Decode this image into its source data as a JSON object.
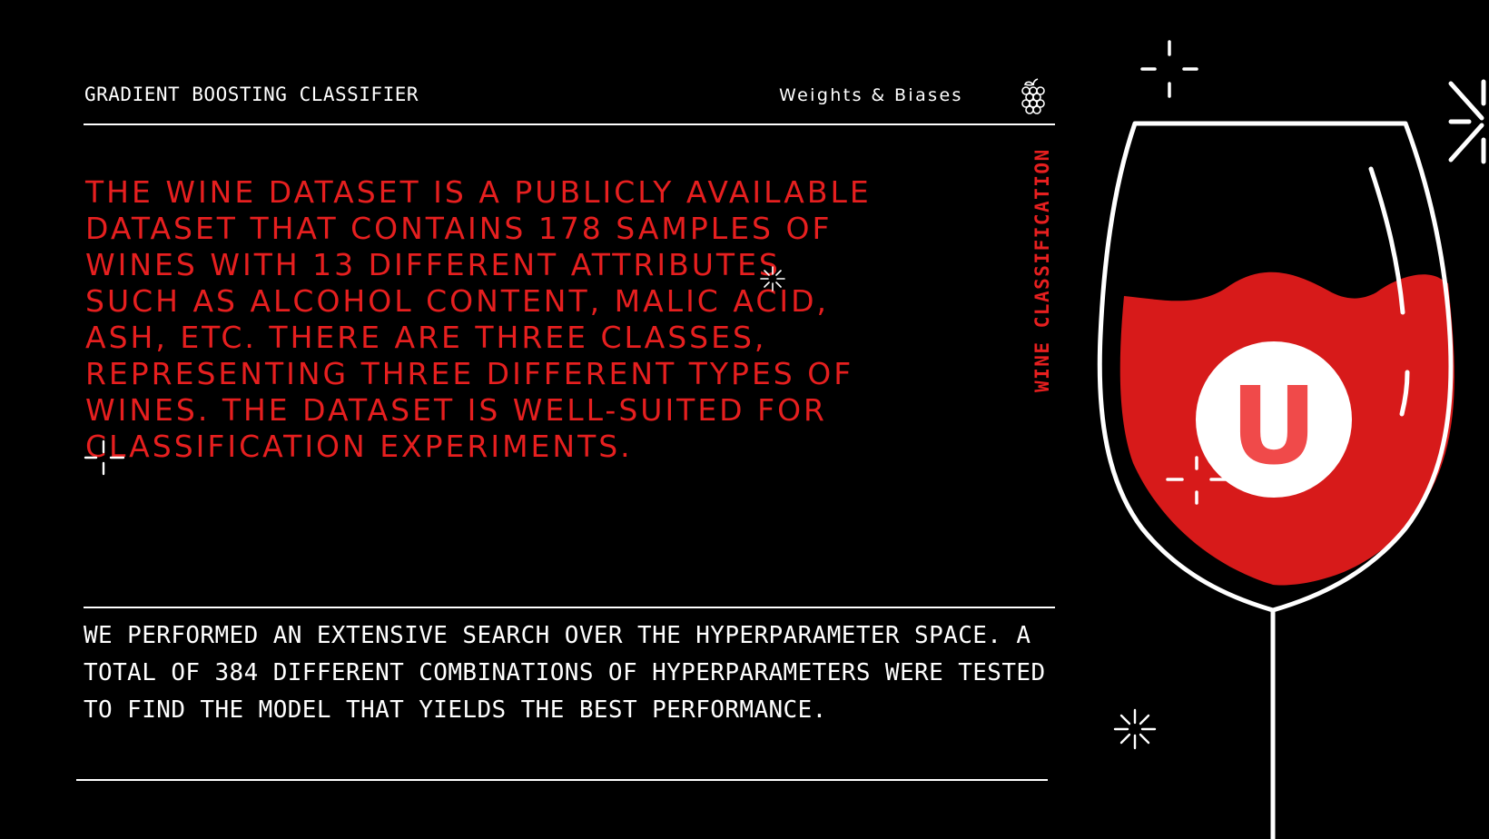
{
  "header": {
    "title": "GRADIENT BOOSTING CLASSIFIER",
    "brand": "Weights & Biases"
  },
  "icons": {
    "brand_logo": "grape-cluster-icon",
    "badge": "u-badge-icon",
    "sparkle": "sparkle-icon",
    "illustration": "wine-glass-illustration"
  },
  "main": {
    "description": "THE WINE DATASET IS A PUBLICLY AVAILABLE DATASET THAT CONTAINS 178 SAMPLES OF WINES WITH 13 DIFFERENT ATTRIBUTES SUCH AS ALCOHOL CONTENT, MALIC ACID, ASH, ETC. THERE ARE THREE CLASSES, REPRESENTING THREE DIFFERENT TYPES OF WINES. THE DATASET IS WELL-SUITED FOR CLASSIFICATION EXPERIMENTS.",
    "side_label": "WINE CLASSIFICATION",
    "summary": "WE PERFORMED AN EXTENSIVE SEARCH OVER THE HYPERPARAMETER SPACE. A TOTAL OF 384 DIFFERENT COMBINATIONS OF HYPERPARAMETERS WERE TESTED TO FIND THE MODEL THAT YIELDS THE BEST PERFORMANCE."
  },
  "badge": {
    "letter": "U"
  },
  "colors": {
    "background": "#000000",
    "accent": "#e61f1f",
    "wine": "#d71a1a",
    "badge_letter": "#f04a4a",
    "foreground": "#ffffff"
  }
}
